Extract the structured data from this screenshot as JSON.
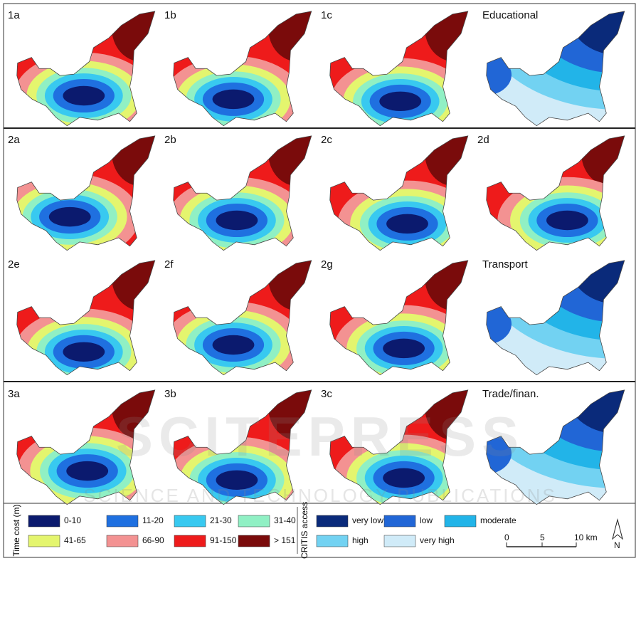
{
  "panels": [
    {
      "label": "1a"
    },
    {
      "label": "1b"
    },
    {
      "label": "1c"
    },
    {
      "label": "Educational"
    },
    {
      "label": "2a"
    },
    {
      "label": "2b"
    },
    {
      "label": "2c"
    },
    {
      "label": "2d"
    },
    {
      "label": "2e"
    },
    {
      "label": "2f"
    },
    {
      "label": "2g"
    },
    {
      "label": "Transport"
    },
    {
      "label": "3a"
    },
    {
      "label": "3b"
    },
    {
      "label": "3c"
    },
    {
      "label": "Trade/finan."
    }
  ],
  "watermark": {
    "title": "SCITEPRESS",
    "subtitle": "SCIENCE AND TECHNOLOGY PUBLICATIONS"
  },
  "legend": {
    "time_cost": {
      "title": "Time cost (m)",
      "items": [
        {
          "label": "0-10",
          "color": "#0b1a6e"
        },
        {
          "label": "11-20",
          "color": "#1f70e0"
        },
        {
          "label": "21-30",
          "color": "#38c9f0"
        },
        {
          "label": "31-40",
          "color": "#90f0c4"
        },
        {
          "label": "41-65",
          "color": "#e4f56e"
        },
        {
          "label": "66-90",
          "color": "#f39292"
        },
        {
          "label": "91-150",
          "color": "#ee1b1b"
        },
        {
          "label": "> 151",
          "color": "#7a0b0b"
        }
      ]
    },
    "access": {
      "title": "CRITIS access",
      "items": [
        {
          "label": "very low",
          "color": "#0a2a7a"
        },
        {
          "label": "low",
          "color": "#2166d6"
        },
        {
          "label": "moderate",
          "color": "#22b4e8"
        },
        {
          "label": "high",
          "color": "#72d2f2"
        },
        {
          "label": "very high",
          "color": "#d0ebf8"
        }
      ]
    },
    "scale": {
      "labels": [
        "0",
        "5",
        "10 km"
      ],
      "north": "N"
    }
  }
}
